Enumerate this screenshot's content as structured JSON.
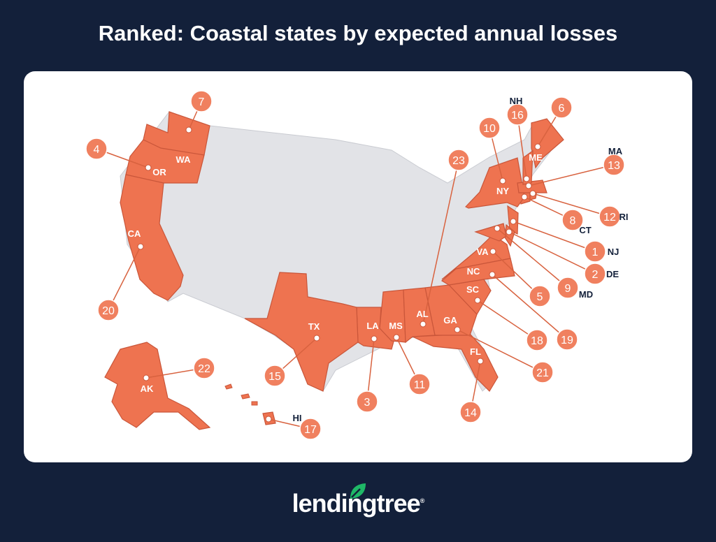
{
  "title": "Ranked: Coastal states by expected annual losses",
  "colors": {
    "background": "#13203a",
    "state_fill": "#ee7350",
    "bubble_fill": "#f0805f",
    "other_states": "#e2e3e7",
    "leaf": "#1fb867"
  },
  "states": [
    {
      "abbr": "NJ",
      "rank": 1
    },
    {
      "abbr": "DE",
      "rank": 2
    },
    {
      "abbr": "LA",
      "rank": 3
    },
    {
      "abbr": "OR",
      "rank": 4
    },
    {
      "abbr": "VA",
      "rank": 5
    },
    {
      "abbr": "ME",
      "rank": 6
    },
    {
      "abbr": "WA",
      "rank": 7
    },
    {
      "abbr": "CT",
      "rank": 8
    },
    {
      "abbr": "MD",
      "rank": 9
    },
    {
      "abbr": "NY",
      "rank": 10
    },
    {
      "abbr": "MS",
      "rank": 11
    },
    {
      "abbr": "RI",
      "rank": 12
    },
    {
      "abbr": "MA",
      "rank": 13
    },
    {
      "abbr": "FL",
      "rank": 14
    },
    {
      "abbr": "TX",
      "rank": 15
    },
    {
      "abbr": "NH",
      "rank": 16
    },
    {
      "abbr": "HI",
      "rank": 17
    },
    {
      "abbr": "SC",
      "rank": 18
    },
    {
      "abbr": "NC",
      "rank": 19
    },
    {
      "abbr": "CA",
      "rank": 20
    },
    {
      "abbr": "GA",
      "rank": 21
    },
    {
      "abbr": "AK",
      "rank": 22
    },
    {
      "abbr": "AL",
      "rank": 23
    }
  ],
  "logo": {
    "text": "lendingtree",
    "mark": "®",
    "icon": "leaf-icon"
  }
}
